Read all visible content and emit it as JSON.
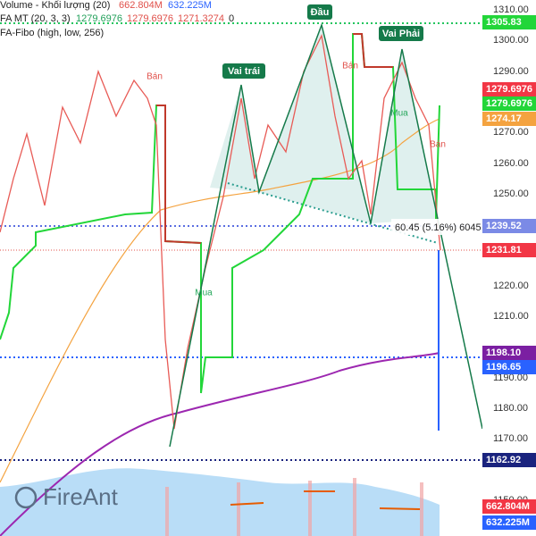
{
  "legend": {
    "volume": {
      "label": "Volume - Khối lượng (20)",
      "value1": "662.804M",
      "value2": "632.225M"
    },
    "fa_mt": {
      "label": "FA MT (20, 3, 3)",
      "values": [
        "1279.6976",
        "1279.6976",
        "1271.3274",
        "0"
      ]
    },
    "fa_fibo": {
      "label": "FA-Fibo (high, low, 256)"
    }
  },
  "price_axis": [
    "1310.00",
    "1300.00",
    "1290.00",
    "1270.00",
    "1260.00",
    "1250.00",
    "1220.00",
    "1210.00",
    "1190.00",
    "1180.00",
    "1170.00",
    "1150.00"
  ],
  "badges": [
    "1305.83",
    "1279.6976",
    "1279.6976",
    "1274.17",
    "1239.52",
    "1231.81",
    "1198.10",
    "1196.65",
    "1162.92",
    "662.804M",
    "632.225M"
  ],
  "patterns": {
    "head": "Đầu",
    "left_shoulder": "Vai trái",
    "right_shoulder": "Vai Phải"
  },
  "signals": {
    "sell": "Bán",
    "buy": "Mua"
  },
  "measure": "60.45 (5.16%) 6045",
  "watermark": "FireAnt"
}
